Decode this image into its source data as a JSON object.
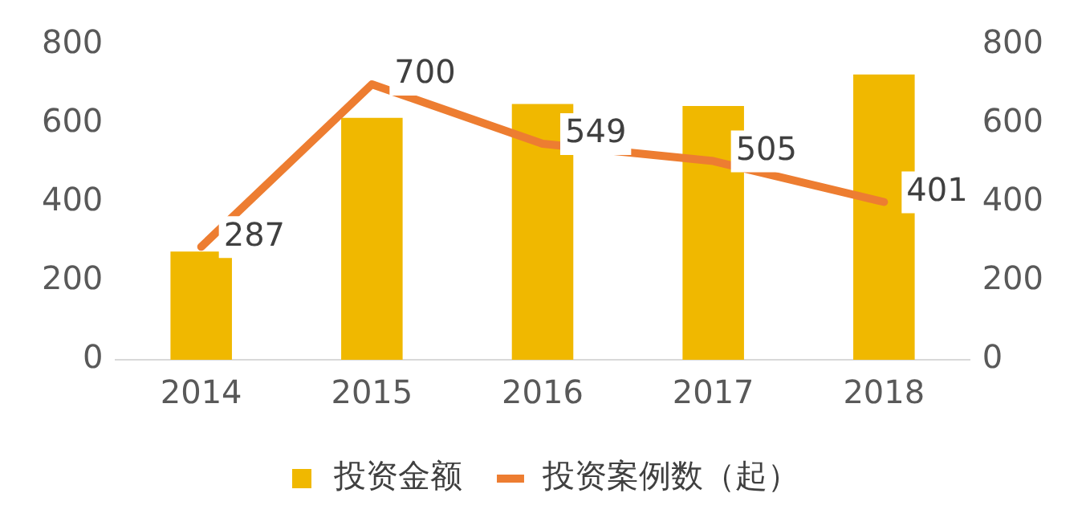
{
  "chart_data": {
    "type": "bar",
    "categories": [
      "2014",
      "2015",
      "2016",
      "2017",
      "2018"
    ],
    "series": [
      {
        "name": "投资金额",
        "color": "#f0b800",
        "values": [
          275,
          615,
          650,
          645,
          725
        ]
      },
      {
        "name": "投资案例数（起）",
        "type": "line",
        "axis": "y2",
        "color": "#ed7d31",
        "values": [
          287,
          700,
          549,
          505,
          401
        ],
        "value_labels": [
          "287",
          "700",
          "549",
          "505",
          "401"
        ]
      }
    ],
    "ylim": [
      0,
      800
    ],
    "yticks": [
      0,
      200,
      400,
      600,
      800
    ],
    "y2lim": [
      0,
      800
    ],
    "y2ticks": [
      0,
      200,
      400,
      600,
      800
    ],
    "grid": false,
    "legend": "bottom",
    "marker": "none",
    "line_style": "solid"
  }
}
